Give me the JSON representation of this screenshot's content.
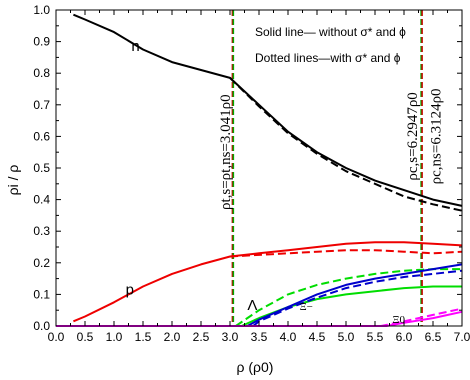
{
  "chart_data": {
    "type": "line",
    "title": "",
    "xlabel": "ρ (ρ0)",
    "ylabel": "ρi / ρ",
    "xlim": [
      0.0,
      7.0
    ],
    "ylim": [
      0.0,
      1.0
    ],
    "x_ticks": [
      "0.0",
      "0.5",
      "1.0",
      "1.5",
      "2.0",
      "2.5",
      "3.0",
      "3.5",
      "4.0",
      "4.5",
      "5.0",
      "5.5",
      "6.0",
      "6.5",
      "7.0"
    ],
    "y_ticks": [
      "0.0",
      "0.1",
      "0.2",
      "0.3",
      "0.4",
      "0.5",
      "0.6",
      "0.7",
      "0.8",
      "0.9",
      "1.0"
    ],
    "grid": false,
    "legend": {
      "placement": "top-right",
      "line1": "Solid line— without σ* and ϕ",
      "line2": "Dotted lines—with σ* and ϕ"
    },
    "vlines": [
      {
        "x": 3.041,
        "color": "#cc0000",
        "style": "dashed"
      },
      {
        "x": 3.041,
        "color": "#00aa00",
        "style": "dashed"
      },
      {
        "x": 6.2947,
        "color": "#00aa00",
        "style": "dashed"
      },
      {
        "x": 6.3124,
        "color": "#cc0000",
        "style": "dashed"
      }
    ],
    "annotations": [
      {
        "text": "ρt,s=ρt,ns=3.041ρ0",
        "x": 3.0,
        "y": 0.55
      },
      {
        "text": "ρc,s=6.2947ρ0",
        "x": 6.22,
        "y": 0.6
      },
      {
        "text": "ρc,ns=6.3124ρ0",
        "x": 6.63,
        "y": 0.6
      }
    ],
    "curve_labels": [
      {
        "text": "n",
        "x": 1.3,
        "y": 0.87
      },
      {
        "text": "p",
        "x": 1.2,
        "y": 0.1
      },
      {
        "text": "Λ",
        "x": 3.3,
        "y": 0.05
      },
      {
        "text": "Ξ−",
        "x": 4.2,
        "y": 0.05
      },
      {
        "text": "Ξ0",
        "x": 5.8,
        "y": 0.01
      }
    ],
    "series": [
      {
        "id": "n_solid",
        "color": "#000000",
        "style": "solid",
        "x": [
          0.3,
          0.5,
          1.0,
          1.5,
          2.0,
          2.5,
          3.0,
          3.5,
          4.0,
          4.5,
          5.0,
          5.5,
          6.0,
          6.5,
          7.0
        ],
        "y": [
          0.985,
          0.97,
          0.93,
          0.875,
          0.835,
          0.81,
          0.785,
          0.7,
          0.615,
          0.55,
          0.5,
          0.46,
          0.43,
          0.4,
          0.38
        ]
      },
      {
        "id": "n_dotted",
        "color": "#000000",
        "style": "dashed",
        "x": [
          3.0,
          3.5,
          4.0,
          4.5,
          5.0,
          5.5,
          6.0,
          6.5,
          7.0
        ],
        "y": [
          0.785,
          0.695,
          0.61,
          0.545,
          0.49,
          0.45,
          0.41,
          0.385,
          0.365
        ]
      },
      {
        "id": "p_solid",
        "color": "#ee0000",
        "style": "solid",
        "x": [
          0.3,
          0.5,
          1.0,
          1.5,
          2.0,
          2.5,
          3.0,
          3.5,
          4.0,
          4.5,
          5.0,
          5.5,
          6.0,
          6.5,
          7.0
        ],
        "y": [
          0.015,
          0.03,
          0.075,
          0.125,
          0.165,
          0.195,
          0.22,
          0.23,
          0.24,
          0.25,
          0.26,
          0.265,
          0.265,
          0.26,
          0.255
        ]
      },
      {
        "id": "p_dotted",
        "color": "#ee0000",
        "style": "dashed",
        "x": [
          3.0,
          3.5,
          4.0,
          4.5,
          5.0,
          5.5,
          6.0,
          6.5,
          7.0
        ],
        "y": [
          0.22,
          0.225,
          0.23,
          0.235,
          0.24,
          0.24,
          0.235,
          0.23,
          0.235
        ]
      },
      {
        "id": "lambda_solid",
        "color": "#00dd00",
        "style": "solid",
        "x": [
          3.2,
          3.5,
          4.0,
          4.5,
          5.0,
          5.5,
          6.0,
          6.5,
          7.0
        ],
        "y": [
          0.0,
          0.025,
          0.06,
          0.085,
          0.1,
          0.11,
          0.12,
          0.125,
          0.125
        ]
      },
      {
        "id": "lambda_dotted",
        "color": "#00dd00",
        "style": "dashed",
        "x": [
          3.1,
          3.5,
          4.0,
          4.5,
          5.0,
          5.5,
          6.0,
          6.5,
          7.0
        ],
        "y": [
          0.0,
          0.05,
          0.1,
          0.13,
          0.15,
          0.165,
          0.175,
          0.18,
          0.18
        ]
      },
      {
        "id": "xim_solid",
        "color": "#0000cc",
        "style": "solid",
        "x": [
          3.3,
          3.5,
          4.0,
          4.5,
          5.0,
          5.5,
          6.0,
          6.5,
          7.0
        ],
        "y": [
          0.0,
          0.02,
          0.06,
          0.1,
          0.13,
          0.15,
          0.165,
          0.18,
          0.195
        ]
      },
      {
        "id": "xim_dotted",
        "color": "#0000cc",
        "style": "dashed",
        "x": [
          3.4,
          3.5,
          4.0,
          4.5,
          5.0,
          5.5,
          6.0,
          6.5,
          7.0
        ],
        "y": [
          0.0,
          0.015,
          0.055,
          0.09,
          0.12,
          0.14,
          0.155,
          0.165,
          0.175
        ]
      },
      {
        "id": "xi0_solid",
        "color": "#ff00ff",
        "style": "solid",
        "x": [
          0.0,
          5.7,
          6.0,
          6.5,
          7.0
        ],
        "y": [
          0.0,
          0.0,
          0.01,
          0.025,
          0.045
        ]
      },
      {
        "id": "xi0_dotted",
        "color": "#ff00ff",
        "style": "dashed",
        "x": [
          0.0,
          5.6,
          6.0,
          6.5,
          7.0
        ],
        "y": [
          0.0,
          0.0,
          0.015,
          0.035,
          0.055
        ]
      }
    ]
  }
}
